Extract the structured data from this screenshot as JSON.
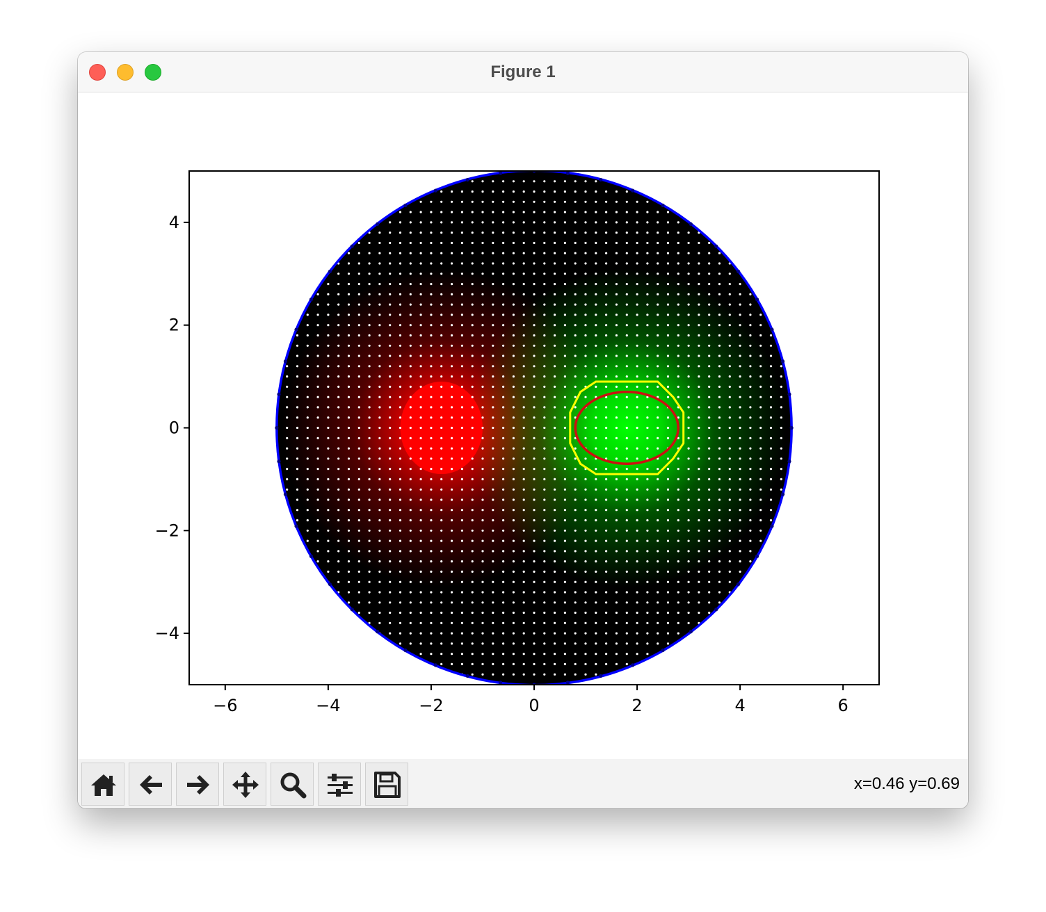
{
  "window": {
    "title": "Figure 1",
    "controls": [
      "close",
      "minimize",
      "zoom"
    ]
  },
  "toolbar": {
    "buttons": [
      {
        "name": "home",
        "icon": "home-icon"
      },
      {
        "name": "back",
        "icon": "arrow-left-icon"
      },
      {
        "name": "forward",
        "icon": "arrow-right-icon"
      },
      {
        "name": "pan",
        "icon": "move-icon"
      },
      {
        "name": "zoom",
        "icon": "magnifier-icon"
      },
      {
        "name": "configure-subplots",
        "icon": "sliders-icon"
      },
      {
        "name": "save",
        "icon": "floppy-icon"
      }
    ],
    "coords": "x=0.46 y=0.69"
  },
  "chart_data": {
    "type": "scatter",
    "title": "",
    "xlabel": "",
    "ylabel": "",
    "xlim": [
      -6.7,
      6.7
    ],
    "ylim": [
      -5,
      5
    ],
    "xticks": [
      -6,
      -4,
      -2,
      0,
      2,
      4,
      6
    ],
    "yticks": [
      -4,
      -2,
      0,
      2,
      4
    ],
    "grid_spacing": 0.2,
    "domain_circle": {
      "cx": 0,
      "cy": 0,
      "r": 5,
      "color": "#0000ff"
    },
    "field_blobs": [
      {
        "cx": -1.8,
        "cy": 0,
        "color": "#ff0000",
        "label": "red"
      },
      {
        "cx": 1.8,
        "cy": 0,
        "color": "#00ff00",
        "label": "green"
      }
    ],
    "red_blob_outline": {
      "cx": -1.8,
      "cy": 0,
      "rx": 0.8,
      "ry": 0.9
    },
    "yellow_polygon": {
      "color": "#ffff00",
      "points": [
        [
          0.7,
          0.3
        ],
        [
          0.9,
          0.7
        ],
        [
          1.2,
          0.9
        ],
        [
          2.4,
          0.9
        ],
        [
          2.7,
          0.6
        ],
        [
          2.9,
          0.3
        ],
        [
          2.9,
          -0.3
        ],
        [
          2.7,
          -0.6
        ],
        [
          2.4,
          -0.9
        ],
        [
          1.2,
          -0.9
        ],
        [
          0.9,
          -0.7
        ],
        [
          0.7,
          -0.3
        ]
      ]
    },
    "red_ellipse": {
      "cx": 1.8,
      "cy": 0,
      "rx": 1.0,
      "ry": 0.7,
      "color": "#cc1111"
    },
    "colors": {
      "point": "#ffffff",
      "frame": "#000000"
    }
  }
}
